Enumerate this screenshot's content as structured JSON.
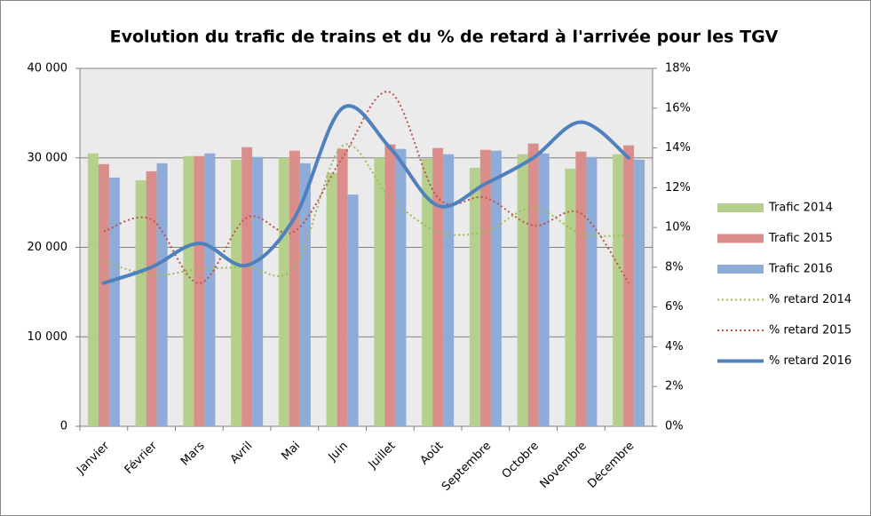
{
  "chart_data": {
    "type": "bar",
    "title": "Evolution du trafic de trains et du % de retard à l'arrivée pour les TGV",
    "categories": [
      "Janvier",
      "Février",
      "Mars",
      "Avril",
      "Mai",
      "Juin",
      "Juillet",
      "Août",
      "Septembre",
      "Octobre",
      "Novembre",
      "Décembre"
    ],
    "series": [
      {
        "name": "Trafic 2014",
        "type": "bar",
        "color": "#b5cf8c",
        "values": [
          30500,
          27500,
          30200,
          29800,
          30000,
          28300,
          30000,
          29900,
          28900,
          30400,
          28800,
          30400
        ]
      },
      {
        "name": "Trafic 2015",
        "type": "bar",
        "color": "#d98e8c",
        "values": [
          29300,
          28500,
          30200,
          31200,
          30800,
          31000,
          31500,
          31100,
          30900,
          31600,
          30700,
          31400
        ]
      },
      {
        "name": "Trafic 2016",
        "type": "bar",
        "color": "#8fabd8",
        "values": [
          27800,
          29400,
          30500,
          30100,
          29400,
          25900,
          31000,
          30400,
          30800,
          30500,
          30100,
          29800
        ]
      },
      {
        "name": "% retard 2014",
        "type": "line",
        "axis": "y2",
        "dashed": true,
        "color": "#9bbb59",
        "values": [
          8.3,
          7.6,
          7.9,
          8.0,
          8.0,
          14.1,
          11.5,
          9.8,
          9.8,
          11.0,
          9.7,
          9.6
        ]
      },
      {
        "name": "% retard 2015",
        "type": "line",
        "axis": "y2",
        "dashed": true,
        "color": "#c0504d",
        "values": [
          9.8,
          10.4,
          7.2,
          10.5,
          9.8,
          13.5,
          16.8,
          11.5,
          11.5,
          10.1,
          10.7,
          7.2
        ]
      },
      {
        "name": "% retard 2016",
        "type": "line",
        "axis": "y2",
        "dashed": false,
        "color": "#4f81bd",
        "values": [
          7.2,
          8.0,
          9.2,
          8.1,
          10.5,
          16.0,
          14.0,
          11.1,
          12.2,
          13.5,
          15.3,
          13.5
        ]
      }
    ],
    "ylim": [
      0,
      40000
    ],
    "yticks": [
      0,
      {
        "value": 10000,
        "label": "10 000"
      },
      {
        "value": 20000,
        "label": "20 000"
      },
      {
        "value": 30000,
        "label": "30 000"
      },
      {
        "value": 40000,
        "label": "40 000"
      }
    ],
    "y2lim": [
      0,
      18
    ],
    "y2ticks": [
      {
        "value": 0,
        "label": "0%"
      },
      {
        "value": 2,
        "label": "2%"
      },
      {
        "value": 4,
        "label": "4%"
      },
      {
        "value": 6,
        "label": "6%"
      },
      {
        "value": 8,
        "label": "8%"
      },
      {
        "value": 10,
        "label": "10%"
      },
      {
        "value": 12,
        "label": "12%"
      },
      {
        "value": 14,
        "label": "14%"
      },
      {
        "value": 16,
        "label": "16%"
      },
      {
        "value": 18,
        "label": "18%"
      }
    ],
    "grid": true,
    "legend": "right"
  }
}
